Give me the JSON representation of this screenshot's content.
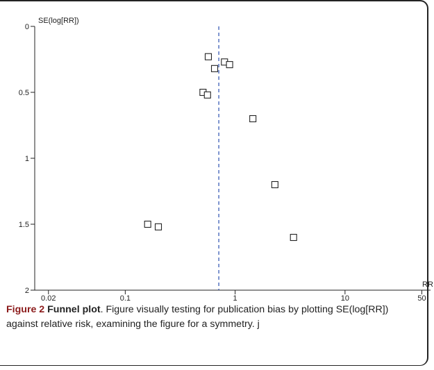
{
  "chart_data": {
    "type": "scatter",
    "title": "",
    "xlabel": "RR",
    "ylabel": "SE(log[RR])",
    "x_scale": "log",
    "xlim": [
      0.015,
      60
    ],
    "ylim": [
      0,
      2
    ],
    "y_inverted": true,
    "x_ticks": [
      0.02,
      0.1,
      1,
      10,
      50
    ],
    "x_tick_labels": [
      "0.02",
      "0.1",
      "1",
      "10",
      "50"
    ],
    "y_ticks": [
      0,
      0.5,
      1,
      1.5,
      2
    ],
    "y_tick_labels": [
      "0",
      "0.5",
      "1",
      "1.5",
      "2"
    ],
    "reference_line_x": 0.71,
    "marker": "open-square",
    "points": [
      {
        "x": 0.57,
        "y": 0.23
      },
      {
        "x": 0.8,
        "y": 0.27
      },
      {
        "x": 0.89,
        "y": 0.29
      },
      {
        "x": 0.65,
        "y": 0.32
      },
      {
        "x": 0.51,
        "y": 0.5
      },
      {
        "x": 0.56,
        "y": 0.52
      },
      {
        "x": 1.45,
        "y": 0.7
      },
      {
        "x": 2.3,
        "y": 1.2
      },
      {
        "x": 0.16,
        "y": 1.5
      },
      {
        "x": 0.2,
        "y": 1.52
      },
      {
        "x": 3.4,
        "y": 1.6
      }
    ],
    "colors": {
      "axis": "#222222",
      "reference_line": "#2a4fb0",
      "marker": "#222222"
    }
  },
  "caption": {
    "label": "Figure 2",
    "title": "Funnel plot",
    "text": ". Figure visually testing for publication bias by plotting SE(log[RR]) against relative risk, examining the figure for a symmetry. j"
  }
}
